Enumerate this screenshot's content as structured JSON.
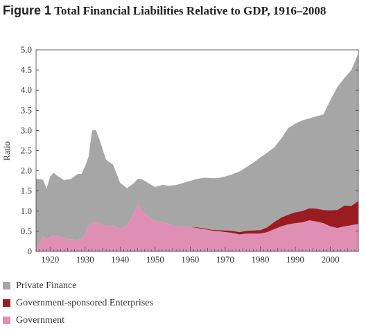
{
  "title": {
    "figure_label": "Figure 1",
    "text": "Total Financial Liabilities Relative to GDP, 1916–2008"
  },
  "chart_data": {
    "type": "area",
    "stacked": true,
    "ylabel": "Ratio",
    "xlabel": "",
    "xlim": [
      1916,
      2008
    ],
    "ylim": [
      0,
      5
    ],
    "yticks": [
      "0",
      "0.5",
      "1.0",
      "1.5",
      "2.0",
      "2.5",
      "3.0",
      "3.5",
      "4.0",
      "4.5",
      "5.0"
    ],
    "xticks": [
      "1920",
      "1930",
      "1940",
      "1950",
      "1960",
      "1970",
      "1980",
      "1990",
      "2000"
    ],
    "x": [
      1916,
      1918,
      1919,
      1920,
      1921,
      1922,
      1924,
      1926,
      1928,
      1929,
      1930,
      1931,
      1932,
      1933,
      1934,
      1936,
      1938,
      1940,
      1942,
      1944,
      1945,
      1946,
      1947,
      1948,
      1950,
      1952,
      1954,
      1956,
      1958,
      1960,
      1962,
      1964,
      1966,
      1968,
      1970,
      1972,
      1974,
      1976,
      1978,
      1980,
      1982,
      1984,
      1986,
      1988,
      1990,
      1992,
      1994,
      1996,
      1998,
      2000,
      2002,
      2004,
      2006,
      2008
    ],
    "series": [
      {
        "name": "Government",
        "color": "#e08fb4",
        "values": [
          0.05,
          0.38,
          0.3,
          0.35,
          0.4,
          0.38,
          0.32,
          0.3,
          0.28,
          0.32,
          0.42,
          0.65,
          0.7,
          0.72,
          0.7,
          0.62,
          0.65,
          0.55,
          0.65,
          0.95,
          1.17,
          1.05,
          0.95,
          0.88,
          0.75,
          0.72,
          0.68,
          0.62,
          0.62,
          0.6,
          0.58,
          0.55,
          0.52,
          0.5,
          0.48,
          0.46,
          0.42,
          0.44,
          0.44,
          0.44,
          0.48,
          0.55,
          0.62,
          0.67,
          0.7,
          0.72,
          0.77,
          0.74,
          0.7,
          0.62,
          0.58,
          0.62,
          0.65,
          0.68
        ]
      },
      {
        "name": "Government-sponsored Enterprises",
        "color": "#9b1c20",
        "values": [
          0,
          0,
          0,
          0,
          0,
          0,
          0,
          0,
          0,
          0,
          0,
          0,
          0,
          0,
          0,
          0,
          0,
          0,
          0,
          0,
          0,
          0,
          0,
          0,
          0,
          0,
          0,
          0,
          0,
          0,
          0.02,
          0.02,
          0.02,
          0.03,
          0.04,
          0.05,
          0.06,
          0.07,
          0.08,
          0.09,
          0.12,
          0.18,
          0.22,
          0.24,
          0.27,
          0.28,
          0.3,
          0.32,
          0.33,
          0.4,
          0.45,
          0.52,
          0.48,
          0.57
        ]
      },
      {
        "name": "Private Finance",
        "color": "#a6a6a6",
        "values": [
          1.75,
          1.4,
          1.25,
          1.5,
          1.55,
          1.5,
          1.45,
          1.5,
          1.65,
          1.6,
          1.7,
          1.7,
          2.3,
          2.3,
          2.1,
          1.65,
          1.5,
          1.15,
          0.92,
          0.75,
          0.63,
          0.75,
          0.8,
          0.82,
          0.85,
          0.93,
          0.95,
          1.03,
          1.08,
          1.15,
          1.2,
          1.26,
          1.28,
          1.29,
          1.34,
          1.4,
          1.5,
          1.58,
          1.68,
          1.8,
          1.85,
          1.85,
          1.96,
          2.15,
          2.2,
          2.25,
          2.23,
          2.29,
          2.37,
          2.73,
          3.05,
          3.16,
          3.37,
          3.67
        ]
      }
    ]
  }
}
